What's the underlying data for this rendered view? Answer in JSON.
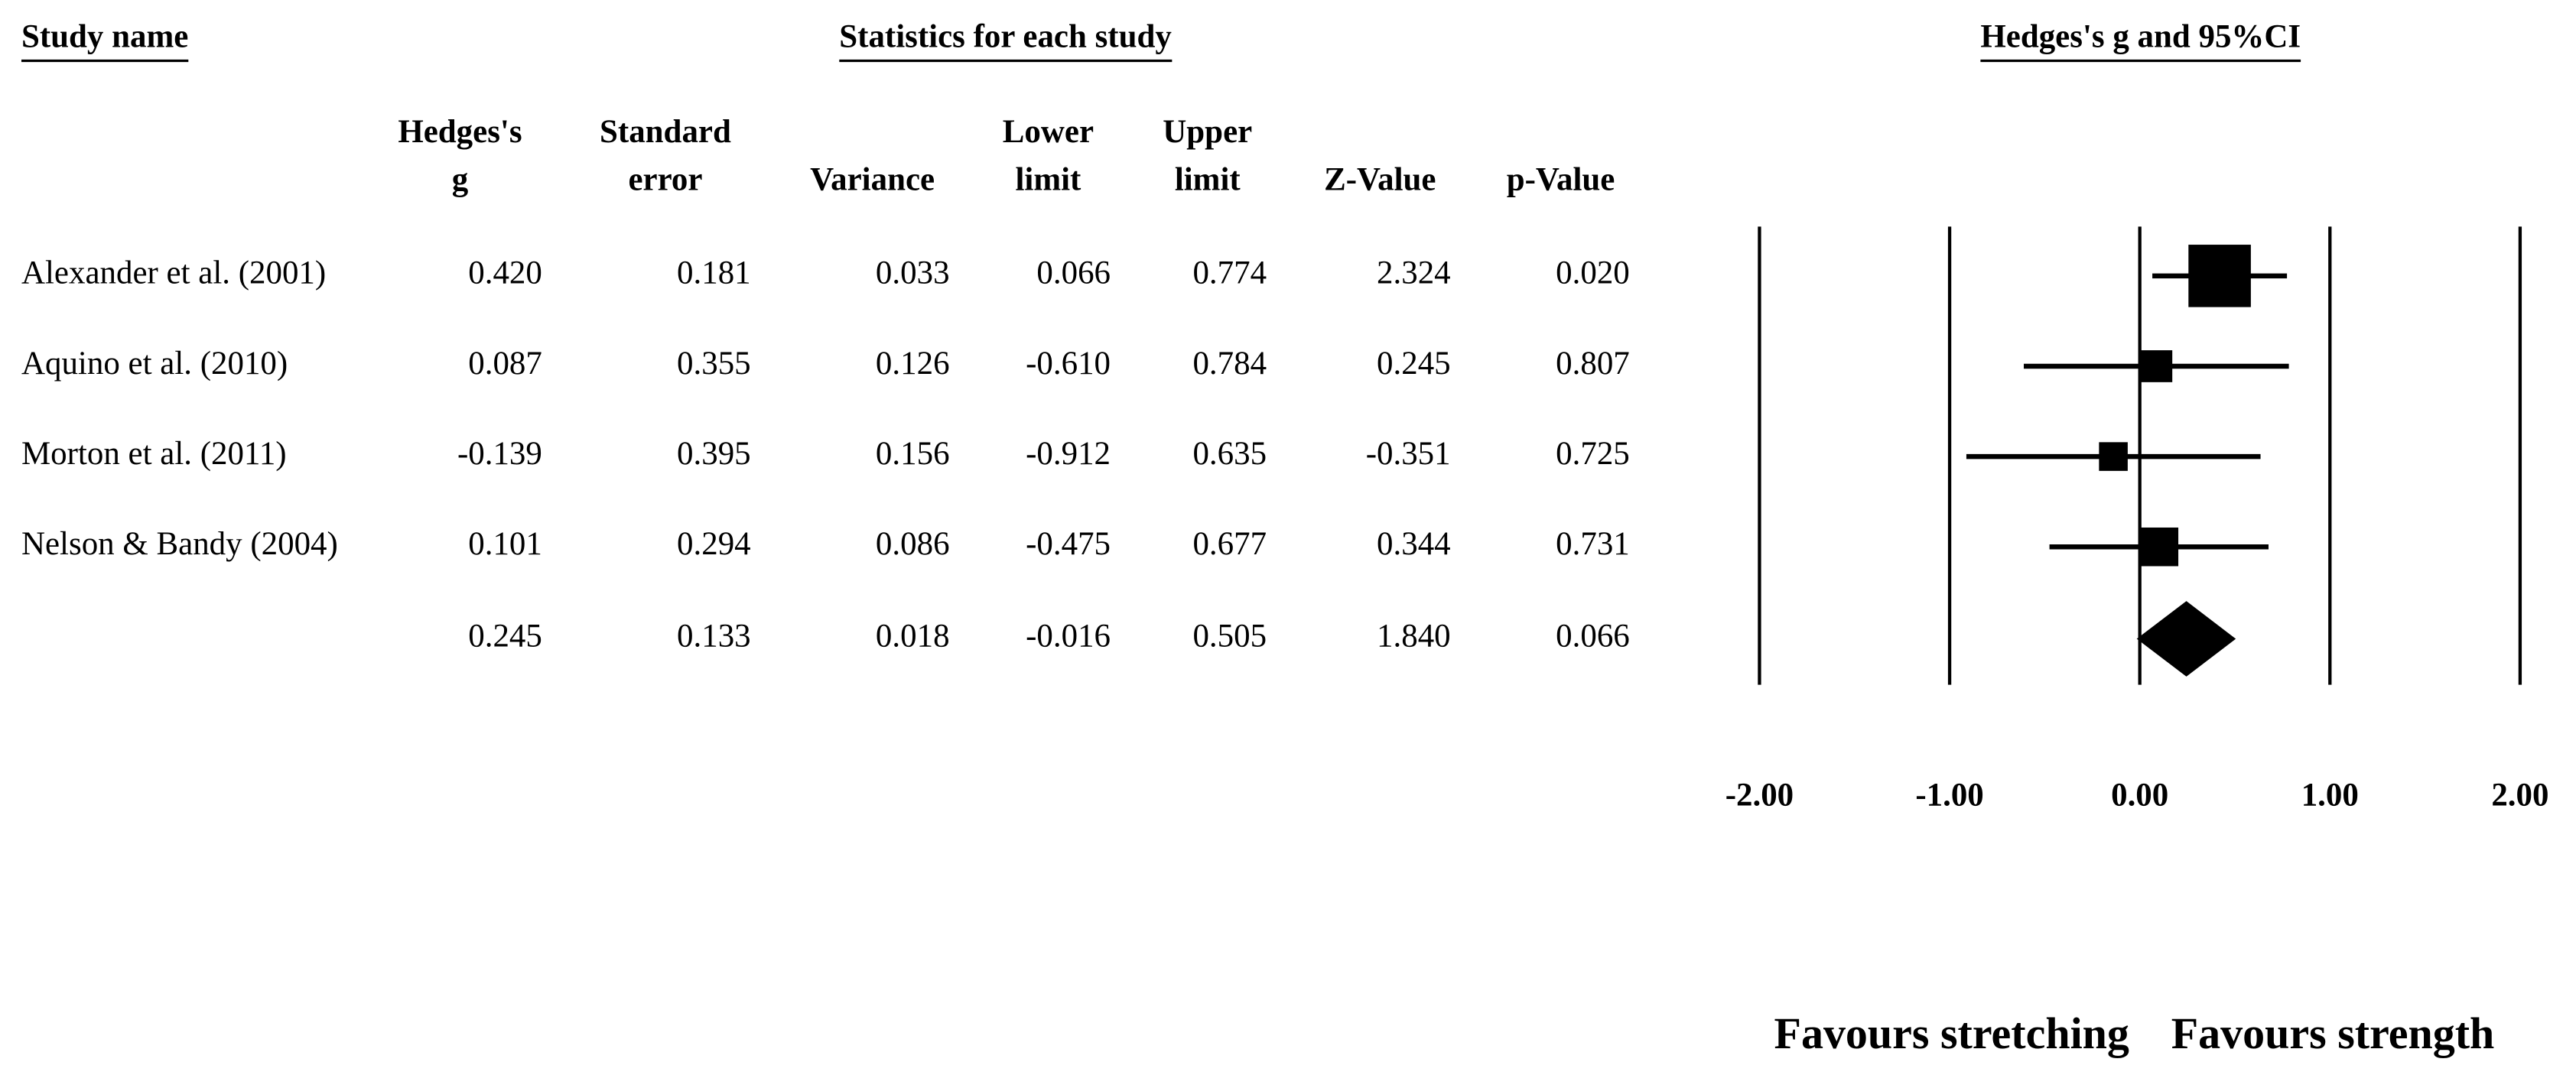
{
  "chart_data": {
    "type": "forest",
    "title": "Hedges's g and 95%CI",
    "study_header": "Study name",
    "stats_header": "Statistics for each study",
    "categories": [
      "Alexander et al. (2001)",
      "Aquino et al. (2010)",
      "Morton et al. (2011)",
      "Nelson & Bandy (2004)",
      null
    ],
    "columns": [
      {
        "header": [
          "Hedges's",
          "g"
        ],
        "values": [
          0.42,
          0.087,
          -0.139,
          0.101,
          0.245
        ],
        "value_labels": [
          "0.420",
          "0.087",
          "-0.139",
          "0.101",
          "0.245"
        ]
      },
      {
        "header": [
          "Standard",
          "error"
        ],
        "values": [
          0.181,
          0.355,
          0.395,
          0.294,
          0.133
        ]
      },
      {
        "header": [
          "Variance"
        ],
        "values": [
          0.033,
          0.126,
          0.156,
          0.086,
          0.018
        ]
      },
      {
        "header": [
          "Lower",
          "limit"
        ],
        "values": [
          0.066,
          -0.61,
          -0.912,
          -0.475,
          -0.016
        ],
        "value_labels": [
          "0.066",
          "-0.610",
          "-0.912",
          "-0.475",
          "-0.016"
        ]
      },
      {
        "header": [
          "Upper",
          "limit"
        ],
        "values": [
          0.774,
          0.784,
          0.635,
          0.677,
          0.505
        ]
      },
      {
        "header": [
          "Z-Value"
        ],
        "values": [
          2.324,
          0.245,
          -0.351,
          0.344,
          1.84
        ],
        "value_labels": [
          "2.324",
          "0.245",
          "-0.351",
          "0.344",
          "1.840"
        ]
      },
      {
        "header": [
          "p-Value"
        ],
        "values": [
          0.02,
          0.807,
          0.725,
          0.731,
          0.066
        ],
        "value_labels": [
          "0.020",
          "0.807",
          "0.725",
          "0.731",
          "0.066"
        ]
      }
    ],
    "xlim": [
      -2,
      2
    ],
    "xticks": [
      {
        "value": -2,
        "label": "-2.00"
      },
      {
        "value": -1,
        "label": "-1.00"
      },
      {
        "value": 0,
        "label": "0.00"
      },
      {
        "value": 1,
        "label": "1.00"
      },
      {
        "value": 2,
        "label": "2.00"
      }
    ],
    "grid": true,
    "color": "#000000",
    "footer_labels": [
      "Favours stretching",
      "Favours strength"
    ]
  }
}
